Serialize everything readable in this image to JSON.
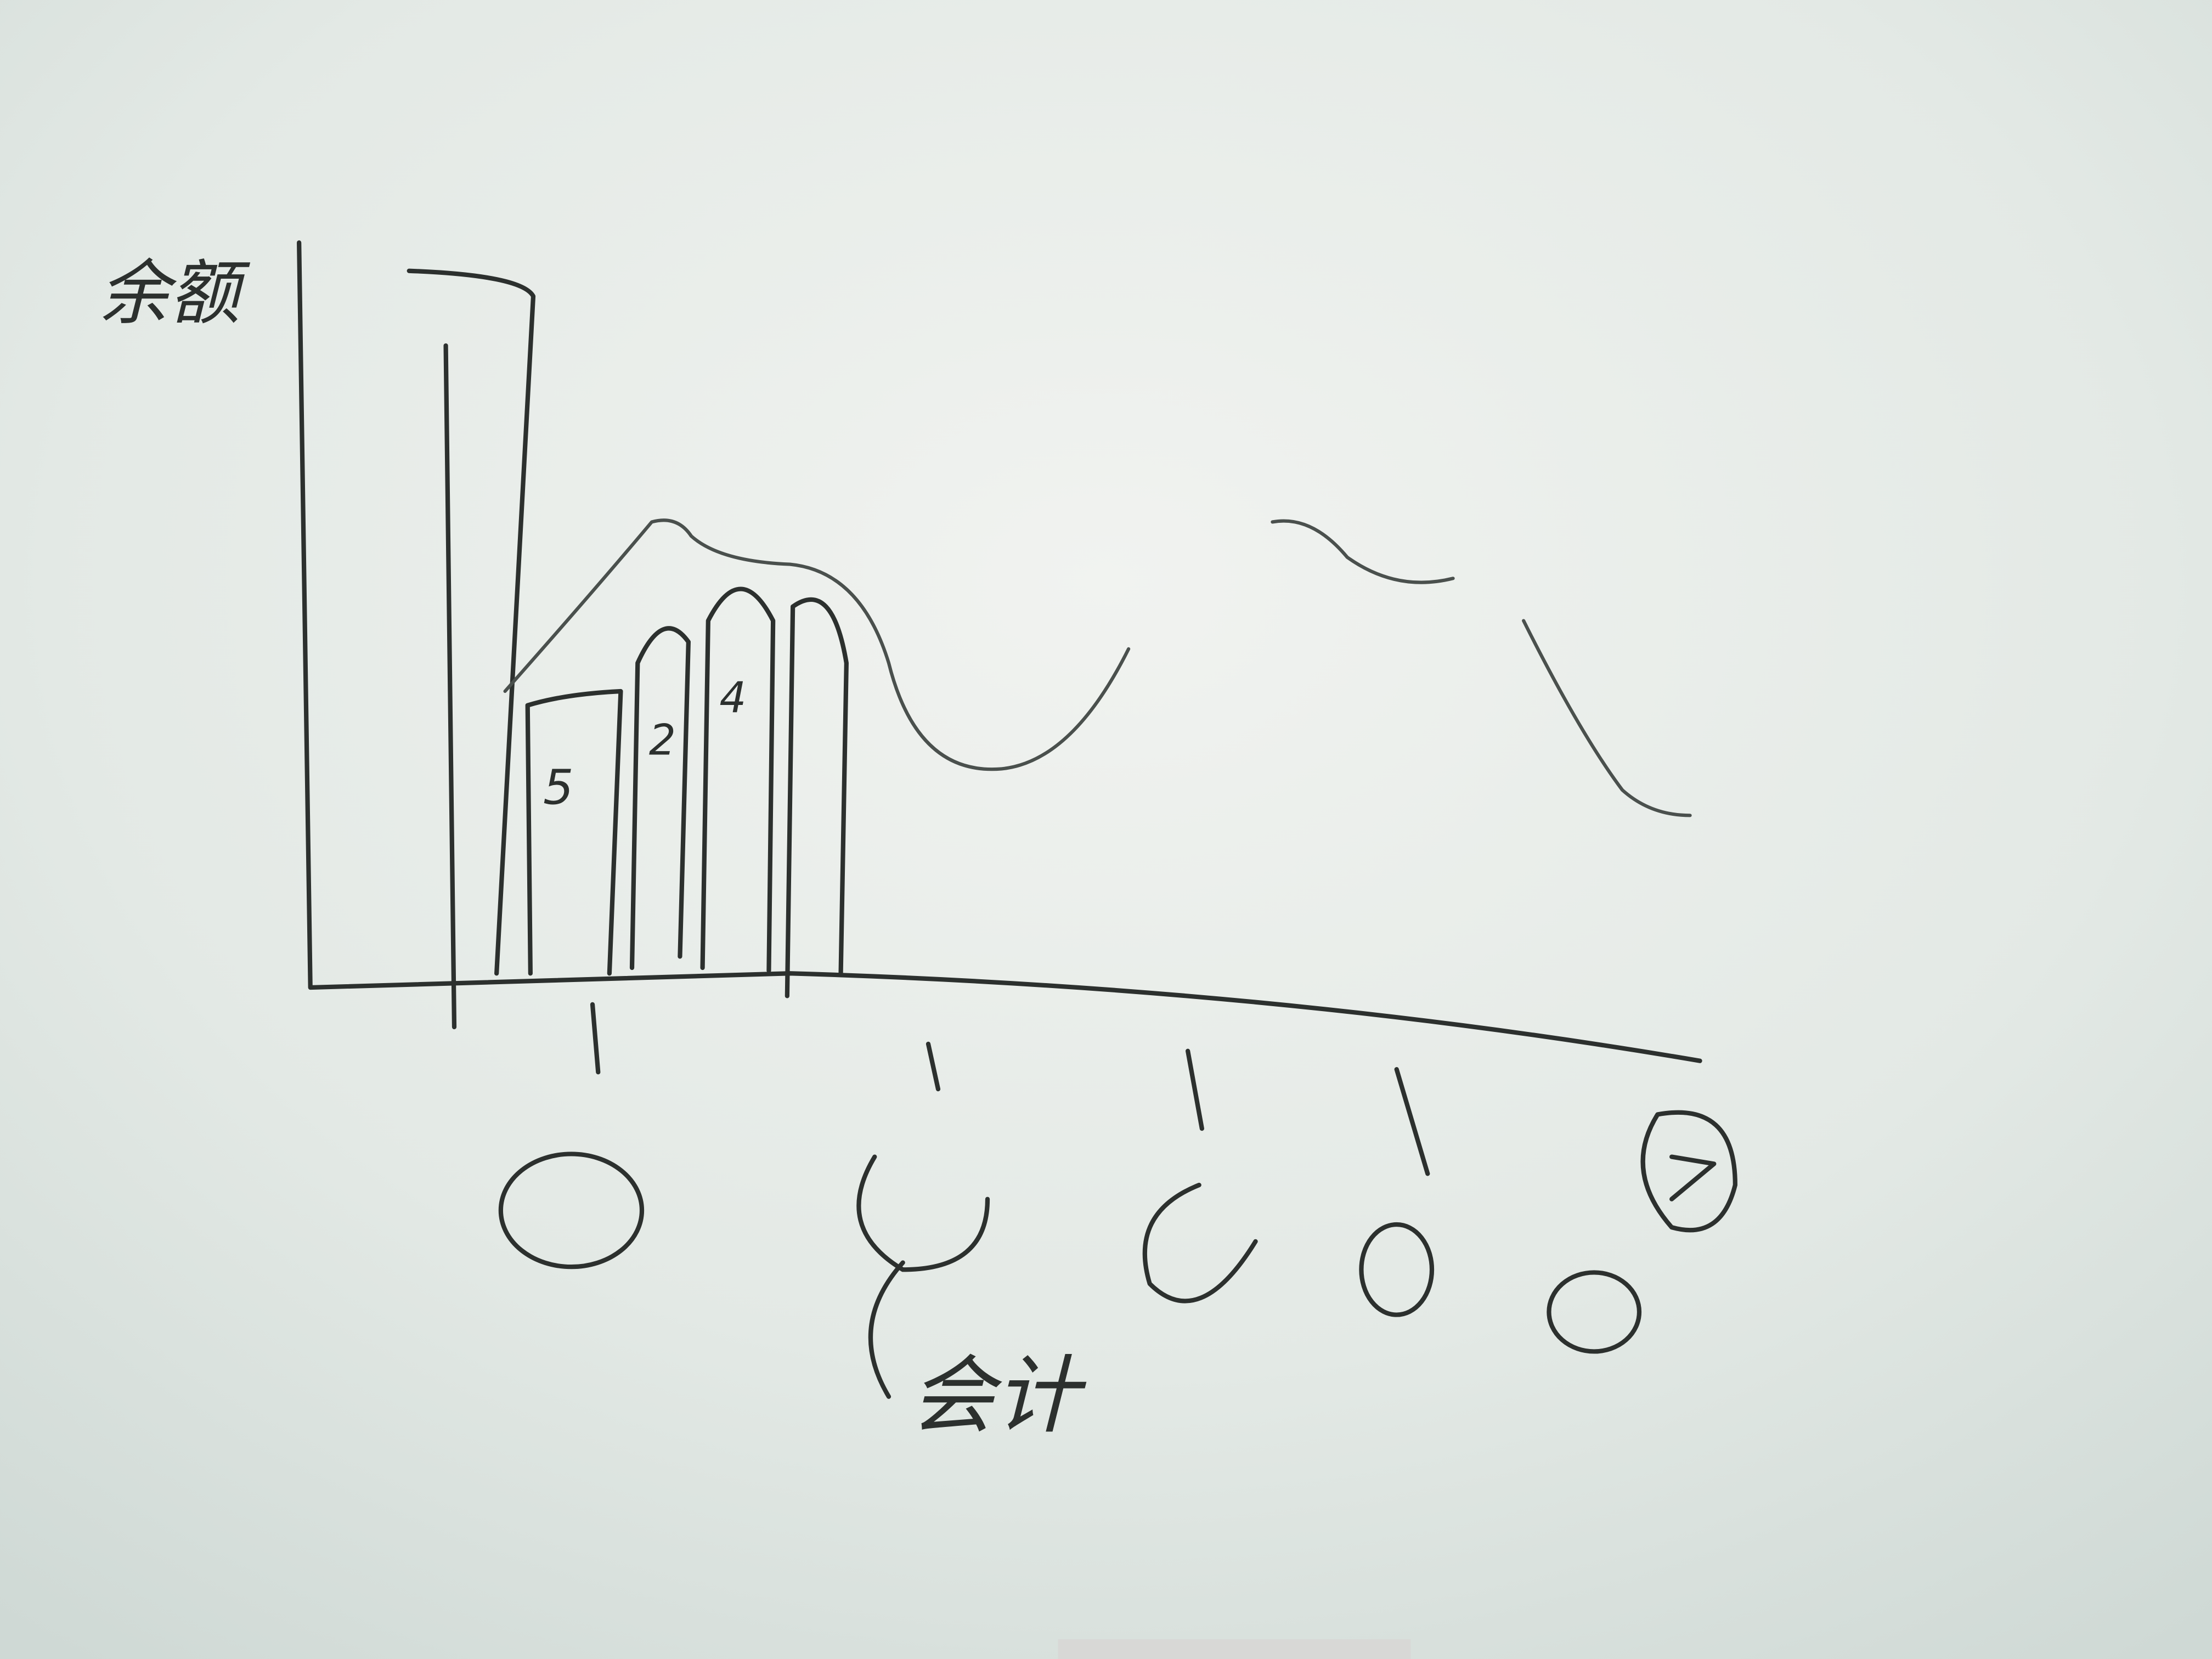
{
  "whiteboard": {
    "y_axis_label": "余额",
    "x_axis_label": "会计",
    "bar_labels": [
      "5",
      "2",
      "4"
    ]
  }
}
